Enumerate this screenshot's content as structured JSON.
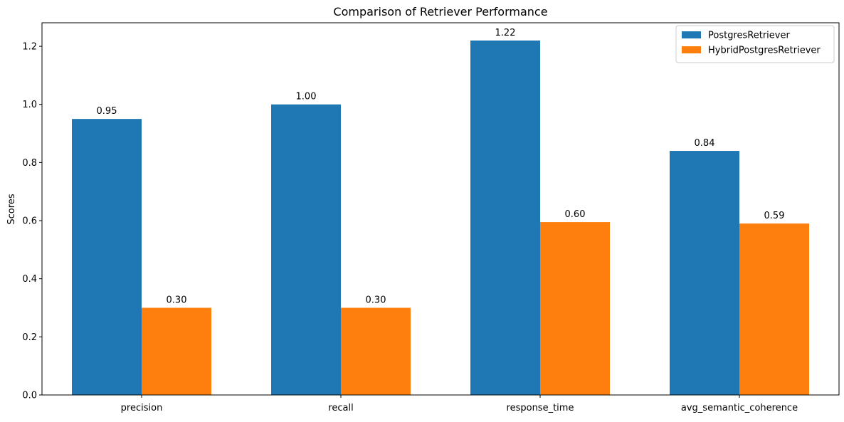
{
  "chart_data": {
    "type": "bar",
    "title": "Comparison of Retriever Performance",
    "xlabel": "",
    "ylabel": "Scores",
    "categories": [
      "precision",
      "recall",
      "response_time",
      "avg_semantic_coherence"
    ],
    "series": [
      {
        "name": "PostgresRetriever",
        "values": [
          0.95,
          1.0,
          1.22,
          0.84
        ],
        "labels": [
          "0.95",
          "1.00",
          "1.22",
          "0.84"
        ],
        "color": "#1f77b4"
      },
      {
        "name": "HybridPostgresRetriever",
        "values": [
          0.3,
          0.3,
          0.595,
          0.59
        ],
        "labels": [
          "0.30",
          "0.30",
          "0.60",
          "0.59"
        ],
        "color": "#ff7f0e"
      }
    ],
    "ylim": [
      0,
      1.281
    ],
    "yticks": [
      0.0,
      0.2,
      0.4,
      0.6,
      0.8,
      1.0,
      1.2
    ],
    "ytick_labels": [
      "0.0",
      "0.2",
      "0.4",
      "0.6",
      "0.8",
      "1.0",
      "1.2"
    ],
    "grid": false,
    "legend_position": "top-right"
  }
}
